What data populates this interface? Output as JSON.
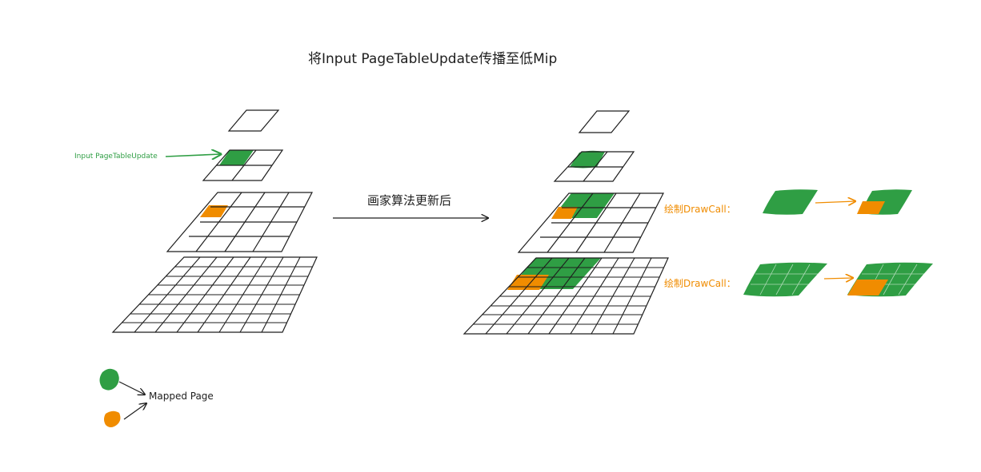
{
  "title": "将Input PageTableUpdate传播至低Mip",
  "input_label": "Input PageTableUpdate",
  "algorithm_label": "画家算法更新后",
  "drawcall_labels": [
    "绘制DrawCall：",
    "绘制DrawCall："
  ],
  "legend": {
    "label": "Mapped Page"
  },
  "colors": {
    "green": "#2f9e44",
    "orange": "#f08c00",
    "line": "#1e1e1e"
  },
  "mip_levels": [
    {
      "level": 0,
      "grid": 1
    },
    {
      "level": 1,
      "grid": 2
    },
    {
      "level": 2,
      "grid": 4
    },
    {
      "level": 3,
      "grid": 8
    }
  ]
}
